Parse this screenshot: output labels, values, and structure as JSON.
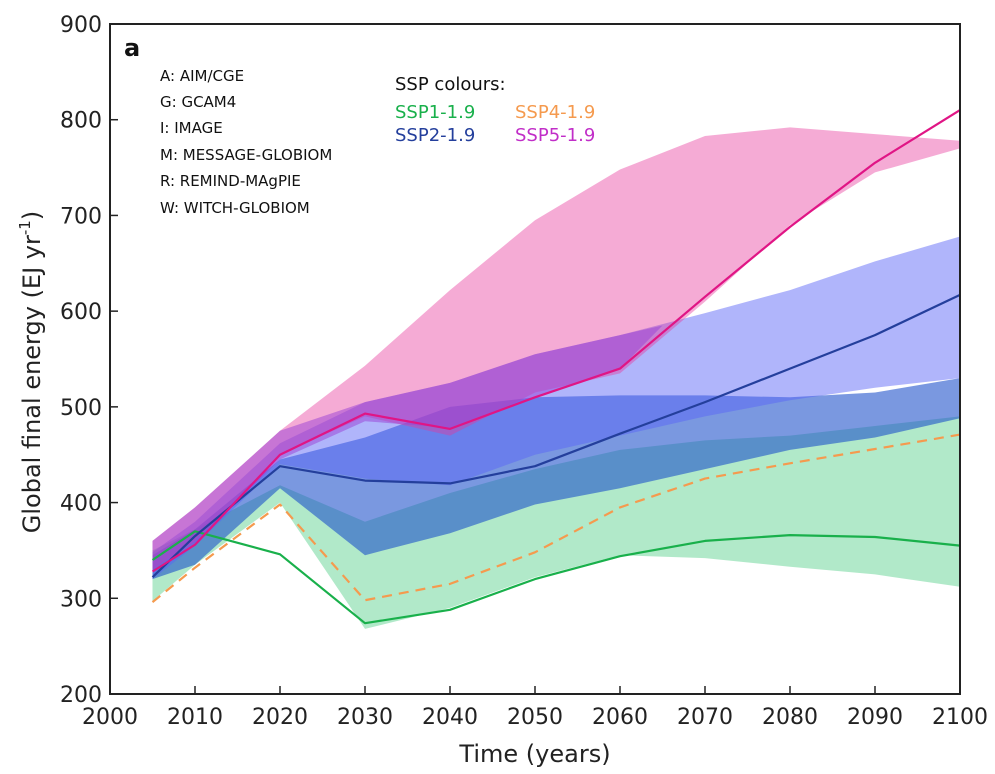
{
  "chart_data": {
    "type": "area",
    "panel_label": "a",
    "xlabel": "Time (years)",
    "ylabel": "Global final energy (EJ yr",
    "ylabel_sup": "-1",
    "ylabel_end": ")",
    "xlim": [
      2000,
      2100
    ],
    "ylim": [
      200,
      900
    ],
    "xticks": [
      "2000",
      "2010",
      "2020",
      "2030",
      "2040",
      "2050",
      "2060",
      "2070",
      "2080",
      "2090",
      "2100"
    ],
    "yticks": [
      "200",
      "300",
      "400",
      "500",
      "600",
      "700",
      "800",
      "900"
    ],
    "grid": false,
    "model_legend": [
      "A: AIM/CGE",
      "G: GCAM4",
      "I: IMAGE",
      "M: MESSAGE-GLOBIOM",
      "R: REMIND-MAgPIE",
      "W: WITCH-GLOBIOM"
    ],
    "colour_legend_title": "SSP colours:",
    "bands": [
      {
        "name": "SSP1-1.9",
        "color": "#3cc879",
        "opacity": 0.4,
        "x": [
          2005,
          2010,
          2020,
          2030,
          2040,
          2050,
          2060,
          2070,
          2080,
          2090,
          2100
        ],
        "upper": [
          350,
          372,
          418,
          380,
          410,
          435,
          455,
          465,
          470,
          480,
          490
        ],
        "lower": [
          297,
          335,
          400,
          268,
          290,
          322,
          345,
          342,
          333,
          325,
          312
        ]
      },
      {
        "name": "SSP2-1.9",
        "color": "#1a4ec9",
        "opacity": 0.58,
        "x": [
          2005,
          2010,
          2020,
          2030,
          2040,
          2050,
          2060,
          2070,
          2080,
          2090,
          2100
        ],
        "upper": [
          345,
          372,
          445,
          468,
          500,
          510,
          512,
          512,
          510,
          515,
          530
        ],
        "lower": [
          320,
          335,
          415,
          345,
          368,
          398,
          415,
          435,
          455,
          468,
          488
        ]
      },
      {
        "name": "SSP2-1.9 range",
        "color": "#5a64f6",
        "opacity": 0.48,
        "x": [
          2005,
          2010,
          2020,
          2030,
          2040,
          2050,
          2060,
          2070,
          2080,
          2090,
          2100
        ],
        "upper": [
          348,
          380,
          462,
          505,
          525,
          555,
          575,
          598,
          622,
          652,
          678
        ],
        "lower": [
          320,
          355,
          440,
          425,
          418,
          450,
          470,
          490,
          507,
          520,
          530
        ]
      },
      {
        "name": "SSP5-1.9",
        "color": "#e8389a",
        "opacity": 0.42,
        "x": [
          2005,
          2010,
          2020,
          2030,
          2040,
          2050,
          2060,
          2070,
          2080,
          2090,
          2100
        ],
        "upper": [
          360,
          395,
          475,
          543,
          622,
          695,
          748,
          783,
          792,
          785,
          778
        ],
        "lower": [
          330,
          360,
          450,
          490,
          470,
          515,
          535,
          610,
          690,
          745,
          770
        ]
      },
      {
        "name": "SSP5-1.9 overlap",
        "color": "#9a3fd6",
        "opacity": 0.5,
        "x": [
          2005,
          2010,
          2020,
          2030,
          2040,
          2050,
          2060,
          2065
        ],
        "upper": [
          360,
          395,
          475,
          505,
          525,
          555,
          575,
          585
        ],
        "lower": [
          330,
          358,
          445,
          485,
          478,
          510,
          540,
          585
        ]
      }
    ],
    "series": [
      {
        "name": "SSP1-1.9",
        "color": "#19b04b",
        "dash": "solid",
        "x": [
          2005,
          2010,
          2020,
          2030,
          2040,
          2050,
          2060,
          2070,
          2080,
          2090,
          2100
        ],
        "values": [
          340,
          370,
          346,
          274,
          288,
          320,
          344,
          360,
          366,
          364,
          355
        ]
      },
      {
        "name": "SSP4-1.9",
        "color": "#f59a4e",
        "dash": "dashed",
        "x": [
          2005,
          2010,
          2020,
          2030,
          2040,
          2050,
          2060,
          2070,
          2080,
          2090,
          2100
        ],
        "values": [
          296,
          332,
          398,
          298,
          315,
          348,
          395,
          425,
          441,
          456,
          471
        ]
      },
      {
        "name": "SSP2-1.9",
        "color": "#243f9c",
        "dash": "solid",
        "x": [
          2005,
          2010,
          2020,
          2030,
          2040,
          2050,
          2060,
          2070,
          2080,
          2090,
          2100
        ],
        "values": [
          322,
          365,
          438,
          423,
          420,
          438,
          472,
          505,
          540,
          575,
          617
        ]
      },
      {
        "name": "SSP5-1.9",
        "color": "#e01585",
        "dash": "solid",
        "x": [
          2005,
          2010,
          2020,
          2030,
          2040,
          2050,
          2060,
          2070,
          2080,
          2090,
          2100
        ],
        "values": [
          328,
          356,
          450,
          493,
          477,
          510,
          540,
          615,
          688,
          755,
          810
        ]
      }
    ],
    "ssp_legend": [
      {
        "label": "SSP1-1.9",
        "color": "#19b04b"
      },
      {
        "label": "SSP4-1.9",
        "color": "#f59a4e"
      },
      {
        "label": "SSP2-1.9",
        "color": "#243f9c"
      },
      {
        "label": "SSP5-1.9",
        "color": "#c12ec8"
      }
    ]
  }
}
